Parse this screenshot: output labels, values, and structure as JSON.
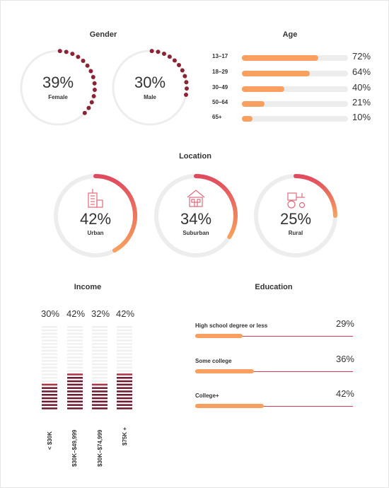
{
  "colors": {
    "dot": "#8b2335",
    "track": "#ededed",
    "orange": "#f7a05f",
    "red": "#e0495f",
    "stack_filled": "#6b1a30",
    "stack_empty": "#f0f0f0",
    "stack_top": "#b03044",
    "icon": "#e06a7c"
  },
  "gender": {
    "title": "Gender",
    "items": [
      {
        "label": "Female",
        "pct_text": "39%",
        "value": 39
      },
      {
        "label": "Male",
        "pct_text": "30%",
        "value": 30
      }
    ]
  },
  "age": {
    "title": "Age",
    "rows": [
      {
        "label": "13–17",
        "pct_text": "72%",
        "value": 72
      },
      {
        "label": "18–29",
        "pct_text": "64%",
        "value": 64
      },
      {
        "label": "30–49",
        "pct_text": "40%",
        "value": 40
      },
      {
        "label": "50–64",
        "pct_text": "21%",
        "value": 21
      },
      {
        "label": "65+",
        "pct_text": "10%",
        "value": 10
      }
    ]
  },
  "location": {
    "title": "Location",
    "items": [
      {
        "label": "Urban",
        "pct_text": "42%",
        "value": 42,
        "icon": "building-icon"
      },
      {
        "label": "Suburban",
        "pct_text": "34%",
        "value": 34,
        "icon": "house-icon"
      },
      {
        "label": "Rural",
        "pct_text": "25%",
        "value": 25,
        "icon": "tractor-icon"
      }
    ]
  },
  "income": {
    "title": "Income",
    "items": [
      {
        "label": "< $30K",
        "pct_text": "30%",
        "value": 30
      },
      {
        "label": "$30K–$49,999",
        "pct_text": "42%",
        "value": 42
      },
      {
        "label": "$30K–$74,999",
        "pct_text": "32%",
        "value": 32
      },
      {
        "label": "$75K +",
        "pct_text": "42%",
        "value": 42
      }
    ]
  },
  "education": {
    "title": "Education",
    "rows": [
      {
        "label": "High school degree or less",
        "pct_text": "29%",
        "value": 29
      },
      {
        "label": "Some college",
        "pct_text": "36%",
        "value": 36
      },
      {
        "label": "College+",
        "pct_text": "42%",
        "value": 42
      }
    ]
  },
  "chart_data": [
    {
      "type": "donut",
      "title": "Gender",
      "categories": [
        "Female",
        "Male"
      ],
      "values": [
        39,
        30
      ],
      "unit": "%"
    },
    {
      "type": "bar",
      "title": "Age",
      "categories": [
        "13–17",
        "18–29",
        "30–49",
        "50–64",
        "65+"
      ],
      "values": [
        72,
        64,
        40,
        21,
        10
      ],
      "unit": "%"
    },
    {
      "type": "donut",
      "title": "Location",
      "categories": [
        "Urban",
        "Suburban",
        "Rural"
      ],
      "values": [
        42,
        34,
        25
      ],
      "unit": "%"
    },
    {
      "type": "bar",
      "title": "Income",
      "categories": [
        "< $30K",
        "$30K–$49,999",
        "$30K–$74,999",
        "$75K +"
      ],
      "values": [
        30,
        42,
        32,
        42
      ],
      "unit": "%"
    },
    {
      "type": "bar",
      "title": "Education",
      "categories": [
        "High school degree or less",
        "Some college",
        "College+"
      ],
      "values": [
        29,
        36,
        42
      ],
      "unit": "%"
    }
  ]
}
